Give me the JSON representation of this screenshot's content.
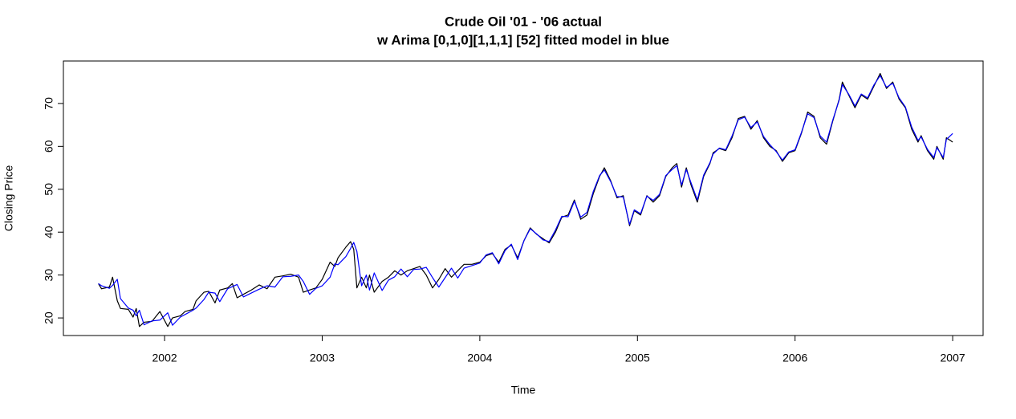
{
  "chart_data": {
    "type": "line",
    "title": "Crude Oil '01 - '06 actual",
    "subtitle": "w Arima [0,1,0][1,1,1] [52] fitted model in blue",
    "x_label": "Time",
    "y_label": "Closing Price",
    "x": [
      2001.58,
      2001.6,
      2001.65,
      2001.67,
      2001.7,
      2001.72,
      2001.77,
      2001.8,
      2001.82,
      2001.84,
      2001.87,
      2001.92,
      2001.97,
      2002.02,
      2002.05,
      2002.1,
      2002.13,
      2002.18,
      2002.2,
      2002.25,
      2002.28,
      2002.32,
      2002.35,
      2002.4,
      2002.43,
      2002.46,
      2002.5,
      2002.55,
      2002.6,
      2002.65,
      2002.7,
      2002.75,
      2002.8,
      2002.85,
      2002.88,
      2002.92,
      2002.96,
      2003,
      2003.05,
      2003.08,
      2003.1,
      2003.15,
      2003.18,
      2003.2,
      2003.22,
      2003.25,
      2003.28,
      2003.3,
      2003.33,
      2003.38,
      2003.42,
      2003.46,
      2003.5,
      2003.54,
      2003.58,
      2003.62,
      2003.66,
      2003.7,
      2003.74,
      2003.78,
      2003.82,
      2003.86,
      2003.9,
      2003.95,
      2004,
      2004.04,
      2004.08,
      2004.12,
      2004.16,
      2004.2,
      2004.24,
      2004.28,
      2004.32,
      2004.36,
      2004.4,
      2004.44,
      2004.48,
      2004.52,
      2004.56,
      2004.6,
      2004.64,
      2004.68,
      2004.72,
      2004.76,
      2004.79,
      2004.83,
      2004.87,
      2004.91,
      2004.95,
      2004.98,
      2005.02,
      2005.06,
      2005.1,
      2005.14,
      2005.18,
      2005.22,
      2005.25,
      2005.28,
      2005.31,
      2005.34,
      2005.38,
      2005.42,
      2005.46,
      2005.48,
      2005.52,
      2005.56,
      2005.6,
      2005.64,
      2005.68,
      2005.72,
      2005.76,
      2005.8,
      2005.84,
      2005.88,
      2005.92,
      2005.96,
      2006,
      2006.04,
      2006.08,
      2006.12,
      2006.16,
      2006.2,
      2006.24,
      2006.28,
      2006.3,
      2006.34,
      2006.38,
      2006.42,
      2006.46,
      2006.5,
      2006.54,
      2006.58,
      2006.62,
      2006.66,
      2006.7,
      2006.74,
      2006.78,
      2006.8,
      2006.84,
      2006.88,
      2006.9,
      2006.94,
      2006.96,
      2007
    ],
    "series": [
      {
        "color": "#000000",
        "values": [
          28,
          26.8,
          27.2,
          29.5,
          24,
          22.2,
          22,
          20.2,
          22.2,
          18,
          19,
          19.2,
          21.5,
          18,
          20,
          20.5,
          21.5,
          22,
          24,
          26,
          26.2,
          23.5,
          26.5,
          27,
          28,
          24.7,
          25.5,
          26.5,
          27.7,
          26.8,
          29.5,
          29.8,
          30.2,
          29.5,
          26,
          26.5,
          27,
          29,
          33,
          32,
          34,
          36.5,
          37.8,
          36,
          27,
          29.5,
          27,
          30,
          26,
          28.5,
          29.5,
          31,
          30,
          31,
          31.5,
          32,
          30,
          27,
          29,
          31.5,
          29.5,
          31,
          32.5,
          32.5,
          33,
          34.5,
          35,
          33,
          36,
          37,
          34,
          38,
          41,
          39.5,
          38.5,
          37.5,
          40,
          43.5,
          44,
          47.5,
          43,
          44,
          49,
          53,
          55,
          52,
          48,
          48.5,
          41.5,
          45,
          44,
          48.5,
          47,
          48.5,
          53,
          55,
          56,
          50.5,
          55,
          51,
          47,
          53,
          56,
          58.5,
          59.5,
          59,
          62,
          66.5,
          67,
          64,
          66,
          62,
          60,
          59,
          56.5,
          58.5,
          59,
          63,
          68,
          67,
          62,
          60.5,
          66,
          71,
          75,
          72,
          69,
          72,
          71,
          74,
          77,
          73.5,
          75,
          71,
          69,
          64,
          61,
          62.5,
          59,
          57,
          60,
          57,
          62,
          61
        ]
      },
      {
        "color": "#0000ff",
        "values": [
          28,
          27.5,
          26.9,
          27.6,
          29,
          24.5,
          22.3,
          21.8,
          20.5,
          21.8,
          18.4,
          19.3,
          19.5,
          21.2,
          18.3,
          20.2,
          20.8,
          21.8,
          22.3,
          24.3,
          26,
          25.8,
          23.8,
          26.8,
          27.3,
          27.8,
          24.9,
          25.8,
          26.7,
          27.5,
          27.2,
          29.6,
          29.7,
          30,
          28.5,
          25.5,
          26.9,
          27.5,
          29.5,
          32.6,
          32.4,
          34.3,
          36.2,
          37.6,
          35.5,
          27.5,
          30,
          26.5,
          30.5,
          26.4,
          28.8,
          29.6,
          31.4,
          29.6,
          31.3,
          31.4,
          31.8,
          29.4,
          27.2,
          29.4,
          31.6,
          29.3,
          31.6,
          32.2,
          32.8,
          34.7,
          35.2,
          32.6,
          35.7,
          37.2,
          33.6,
          38,
          40.8,
          39.6,
          38.2,
          37.8,
          40.5,
          43.7,
          43.6,
          47.2,
          43.5,
          44.6,
          49.5,
          53.2,
          54.5,
          51.8,
          48.3,
          48.2,
          41.8,
          45.2,
          44.3,
          48.4,
          47.4,
          48.8,
          53.2,
          54.6,
          55.5,
          51,
          54.6,
          51.5,
          47.5,
          53.3,
          56.2,
          58.2,
          59.6,
          59.2,
          62.4,
          66.2,
          66.8,
          64.4,
          65.7,
          62.3,
          60.4,
          58.8,
          56.8,
          58.7,
          59.2,
          63.2,
          67.6,
          66.7,
          62.4,
          61,
          66.2,
          70.8,
          74.4,
          72.2,
          69.4,
          72.2,
          71.3,
          74.3,
          76.5,
          73.8,
          74.7,
          71.3,
          69.2,
          64.5,
          61.4,
          62.2,
          59.3,
          57.4,
          59.7,
          57.4,
          61.6,
          63
        ]
      }
    ],
    "xlim": [
      2001.358,
      2007.193
    ],
    "ylim": [
      15.9,
      79.9
    ],
    "xticks": [
      2002,
      2003,
      2004,
      2005,
      2006,
      2007
    ],
    "yticks": [
      20,
      30,
      40,
      50,
      60,
      70
    ]
  }
}
